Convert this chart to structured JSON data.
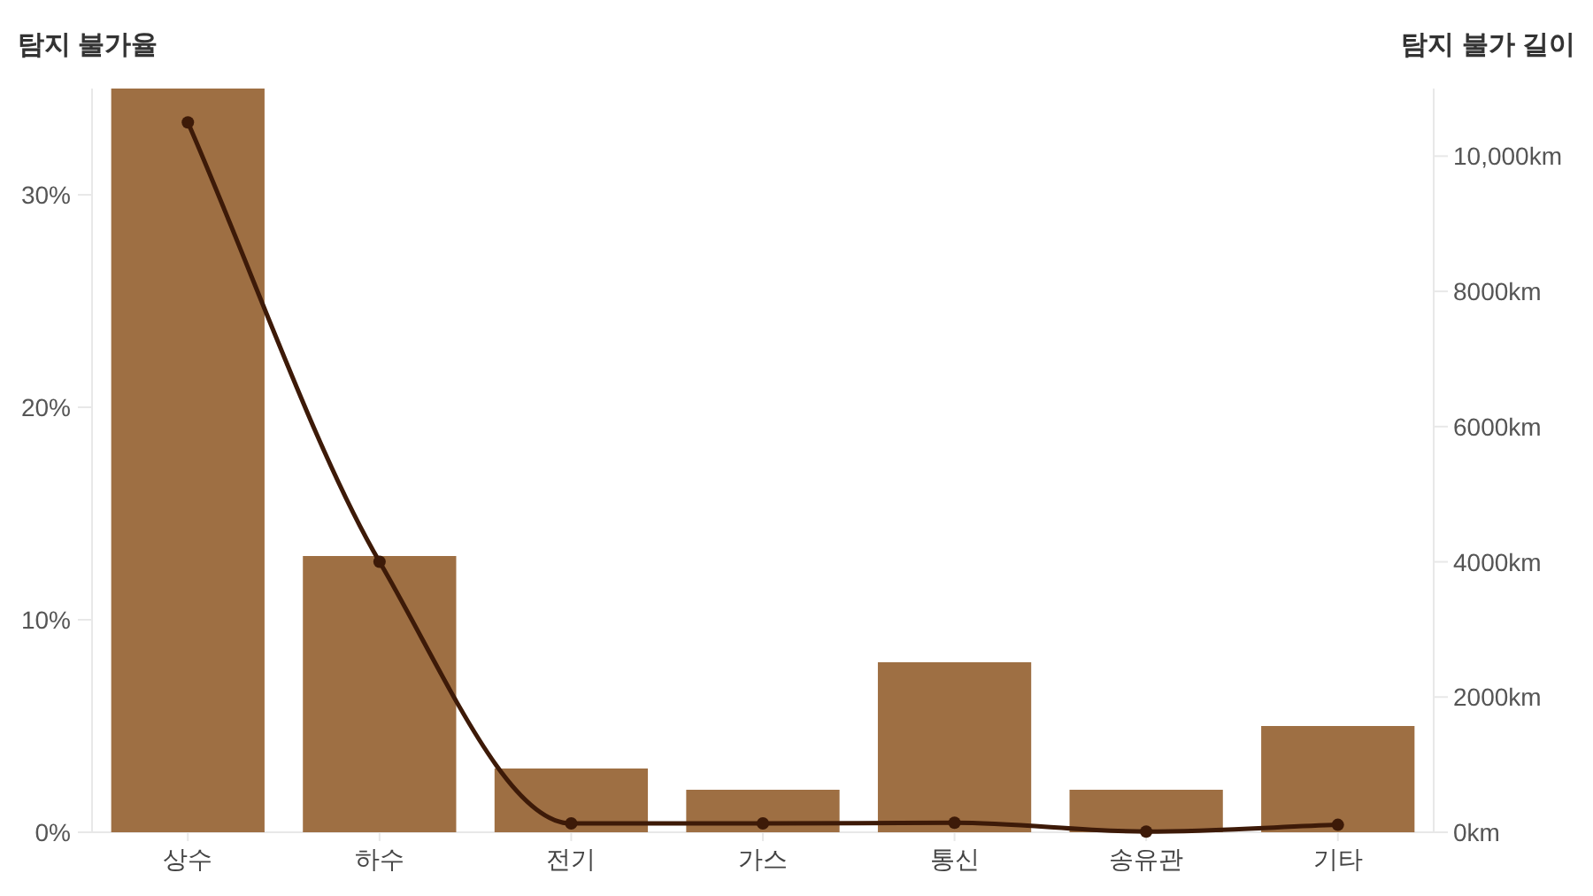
{
  "chart_data": {
    "type": "bar",
    "ylabel": "탐지 불가율",
    "y2label": "탐지 불가 길이",
    "categories": [
      "상수",
      "하수",
      "전기",
      "가스",
      "통신",
      "송유관",
      "기타"
    ],
    "series": [
      {
        "color": "#9e6f43",
        "values": [
          35,
          13,
          3,
          2,
          8,
          2,
          5
        ]
      },
      {
        "type": "line",
        "axis": "y2",
        "color": "#3d1a08",
        "marker": "circle",
        "values": [
          10500,
          4000,
          130,
          130,
          140,
          10,
          110
        ]
      }
    ],
    "ylim": [
      0,
      35
    ],
    "yticks": [
      {
        "value": 0,
        "label": "0%"
      },
      {
        "value": 10,
        "label": "10%"
      },
      {
        "value": 20,
        "label": "20%"
      },
      {
        "value": 30,
        "label": "30%"
      }
    ],
    "y2lim": [
      0,
      11000
    ],
    "y2ticks": [
      {
        "value": 0,
        "label": "0km"
      },
      {
        "value": 2000,
        "label": "2000km"
      },
      {
        "value": 4000,
        "label": "4000km"
      },
      {
        "value": 6000,
        "label": "6000km"
      },
      {
        "value": 8000,
        "label": "8000km"
      },
      {
        "value": 10000,
        "label": "10,000km"
      }
    ],
    "grid": false
  }
}
